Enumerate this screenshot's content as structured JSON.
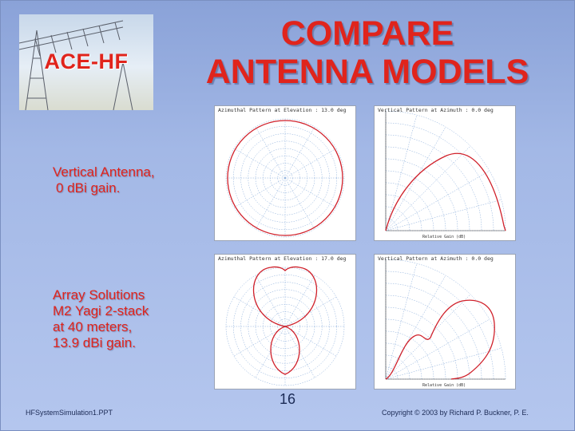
{
  "logo": {
    "text": "ACE-HF"
  },
  "title": {
    "line1": "COMPARE",
    "line2": "ANTENNA MODELS"
  },
  "vertical_antenna": {
    "line1": "Vertical Antenna,",
    "line2": "0 dBi gain."
  },
  "array_solutions": {
    "line1": "Array Solutions",
    "line2": "M2 Yagi 2-stack",
    "line3": "at 40 meters,",
    "line4": "13.9 dBi gain."
  },
  "plots": {
    "top_left_caption": "Azimuthal Pattern at Elevation : 13.0 deg",
    "top_right_caption": "Vertical Pattern at Azimuth : 0.0 deg",
    "bottom_left_caption": "Azimuthal Pattern at Elevation : 17.0 deg",
    "bottom_right_caption": "Vertical Pattern at Azimuth : 0.0 deg",
    "axis_label": "Relative Gain (dB)",
    "grid_color": "#7fa6d8",
    "pattern_color": "#d0202a"
  },
  "footer": {
    "filename": "HFSystemSimulation1.PPT",
    "page_number": "16",
    "copyright": "Copyright © 2003 by Richard P. Buckner, P. E."
  },
  "colors": {
    "title": "#e0241c",
    "background": "#9fb4e4"
  }
}
